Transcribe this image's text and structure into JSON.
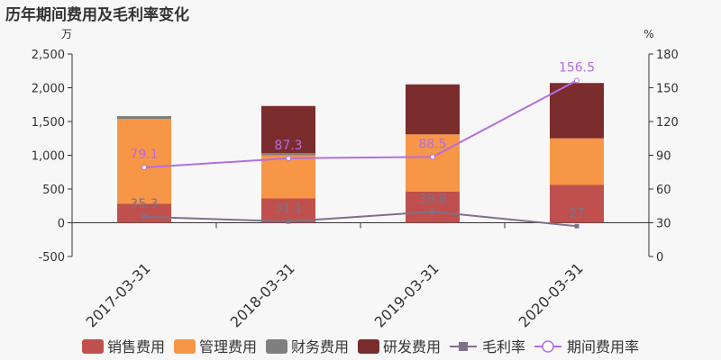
{
  "title": "历年期间费用及毛利率变化",
  "chart_data": {
    "type": "bar",
    "categories": [
      "2017-03-31",
      "2018-03-31",
      "2019-03-31",
      "2020-03-31"
    ],
    "left_axis": {
      "unit": "万",
      "ylim": [
        -500,
        2500
      ],
      "ticks": [
        -500,
        0,
        500,
        1000,
        1500,
        2000,
        2500
      ],
      "tick_labels": [
        "-500",
        "0",
        "500",
        "1,000",
        "1,500",
        "2,000",
        "2,500"
      ]
    },
    "right_axis": {
      "unit": "%",
      "ylim": [
        0,
        180
      ],
      "ticks": [
        0,
        30,
        60,
        90,
        120,
        150,
        180
      ],
      "tick_labels": [
        "0",
        "30",
        "60",
        "90",
        "120",
        "150",
        "180"
      ]
    },
    "stacked_series": [
      {
        "name": "销售费用",
        "color": "#c0504d",
        "values": [
          280,
          360,
          460,
          560
        ]
      },
      {
        "name": "管理费用",
        "color": "#f79646",
        "values": [
          1260,
          640,
          850,
          690
        ]
      },
      {
        "name": "财务费用",
        "color": "#7f7f7f",
        "values": [
          40,
          30,
          0,
          0
        ]
      },
      {
        "name": "研发费用",
        "color": "#7b2c2c",
        "values": [
          0,
          700,
          740,
          820
        ]
      }
    ],
    "line_series": [
      {
        "name": "毛利率",
        "color": "#7f7089",
        "marker": "square",
        "values": [
          35.3,
          31.1,
          39.8,
          27
        ],
        "labels": [
          "35.3",
          "31.1",
          "39.8",
          "27"
        ]
      },
      {
        "name": "期间费用率",
        "color": "#b36ee0",
        "marker": "circle",
        "values": [
          79.1,
          87.3,
          88.5,
          156.5
        ],
        "labels": [
          "79.1",
          "87.3",
          "88.5",
          "156.5"
        ]
      }
    ],
    "legend_position": "bottom",
    "grid": false
  }
}
